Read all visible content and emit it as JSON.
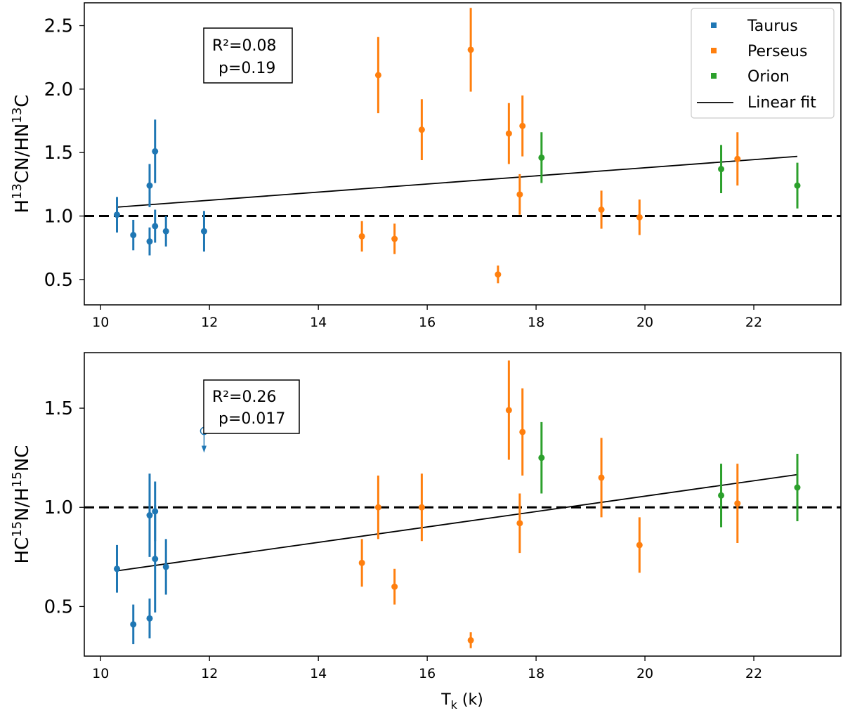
{
  "colors": {
    "Taurus": "#1f77b4",
    "Perseus": "#ff7f0e",
    "Orion": "#2ca02c",
    "fit": "#000000"
  },
  "legend": {
    "entries": [
      {
        "label": "Taurus",
        "type": "marker",
        "series": "Taurus"
      },
      {
        "label": "Perseus",
        "type": "marker",
        "series": "Perseus"
      },
      {
        "label": "Orion",
        "type": "marker",
        "series": "Orion"
      },
      {
        "label": "Linear fit",
        "type": "line",
        "series": "fit"
      }
    ]
  },
  "chart_data": [
    {
      "type": "scatter",
      "panel": "top",
      "ylabel": {
        "base1": "H",
        "sup1": "13",
        "base2": "CN/HN",
        "sup2": "13",
        "base3": "C"
      },
      "xlim": [
        9.7,
        23.6
      ],
      "ylim": [
        0.3,
        2.68
      ],
      "xticks": [
        10,
        12,
        14,
        16,
        18,
        20,
        22
      ],
      "yticks": [
        0.5,
        1.0,
        1.5,
        2.0,
        2.5
      ],
      "ytick_labels": [
        "0.5",
        "1.0",
        "1.5",
        "2.0",
        "2.5"
      ],
      "reference_line": 1.0,
      "fit": {
        "x": [
          10.3,
          22.8
        ],
        "y": [
          1.07,
          1.47
        ]
      },
      "stats": {
        "r2": "R²=0.08",
        "p": "p=0.19"
      },
      "series": [
        {
          "name": "Taurus",
          "points": [
            {
              "x": 10.3,
              "y": 1.01,
              "err": 0.14
            },
            {
              "x": 10.6,
              "y": 0.85,
              "err": 0.12
            },
            {
              "x": 10.9,
              "y": 1.24,
              "err": 0.17
            },
            {
              "x": 10.9,
              "y": 0.8,
              "err": 0.11
            },
            {
              "x": 11.0,
              "y": 1.51,
              "err": 0.25
            },
            {
              "x": 11.0,
              "y": 0.92,
              "err": 0.13
            },
            {
              "x": 11.2,
              "y": 0.88,
              "err": 0.12
            },
            {
              "x": 11.9,
              "y": 0.88,
              "err": 0.16
            }
          ]
        },
        {
          "name": "Perseus",
          "points": [
            {
              "x": 14.8,
              "y": 0.84,
              "err": 0.12
            },
            {
              "x": 15.1,
              "y": 2.11,
              "err": 0.3
            },
            {
              "x": 15.4,
              "y": 0.82,
              "err": 0.12
            },
            {
              "x": 15.9,
              "y": 1.68,
              "err": 0.24
            },
            {
              "x": 16.8,
              "y": 2.31,
              "err": 0.33
            },
            {
              "x": 17.3,
              "y": 0.54,
              "err": 0.07
            },
            {
              "x": 17.5,
              "y": 1.65,
              "err": 0.24
            },
            {
              "x": 17.7,
              "y": 1.17,
              "err": 0.16
            },
            {
              "x": 17.75,
              "y": 1.71,
              "err": 0.24
            },
            {
              "x": 19.2,
              "y": 1.05,
              "err": 0.15
            },
            {
              "x": 19.9,
              "y": 0.99,
              "err": 0.14
            },
            {
              "x": 21.7,
              "y": 1.45,
              "err": 0.21
            }
          ]
        },
        {
          "name": "Orion",
          "points": [
            {
              "x": 18.1,
              "y": 1.46,
              "err": 0.2
            },
            {
              "x": 21.4,
              "y": 1.37,
              "err": 0.19
            },
            {
              "x": 22.8,
              "y": 1.24,
              "err": 0.18
            }
          ]
        }
      ]
    },
    {
      "type": "scatter",
      "panel": "bottom",
      "ylabel": {
        "base1": "HC",
        "sup1": "15",
        "base2": "N/H",
        "sup2": "15",
        "base3": "NC"
      },
      "xlabel": {
        "base": "T",
        "sub": "k",
        "rest": " (k)"
      },
      "xlim": [
        9.7,
        23.6
      ],
      "ylim": [
        0.25,
        1.78
      ],
      "xticks": [
        10,
        12,
        14,
        16,
        18,
        20,
        22
      ],
      "yticks": [
        0.5,
        1.0,
        1.5
      ],
      "ytick_labels": [
        "0.5",
        "1.0",
        "1.5"
      ],
      "reference_line": 1.0,
      "fit": {
        "x": [
          10.3,
          22.8
        ],
        "y": [
          0.68,
          1.165
        ]
      },
      "stats": {
        "r2": "R²=0.26",
        "p": "p=0.017"
      },
      "upper_limits": [
        {
          "series": "Taurus",
          "x": 11.9,
          "y": 1.385
        }
      ],
      "series": [
        {
          "name": "Taurus",
          "points": [
            {
              "x": 10.3,
              "y": 0.69,
              "err": 0.12
            },
            {
              "x": 10.6,
              "y": 0.41,
              "err": 0.1
            },
            {
              "x": 10.9,
              "y": 0.44,
              "err": 0.1
            },
            {
              "x": 10.9,
              "y": 0.96,
              "err": 0.21
            },
            {
              "x": 11.0,
              "y": 0.98,
              "err": 0.15
            },
            {
              "x": 11.0,
              "y": 0.74,
              "err": 0.27
            },
            {
              "x": 11.2,
              "y": 0.7,
              "err": 0.14
            }
          ]
        },
        {
          "name": "Perseus",
          "points": [
            {
              "x": 14.8,
              "y": 0.72,
              "err": 0.12
            },
            {
              "x": 15.1,
              "y": 1.0,
              "err": 0.16
            },
            {
              "x": 15.4,
              "y": 0.6,
              "err": 0.09
            },
            {
              "x": 15.9,
              "y": 1.0,
              "err": 0.17
            },
            {
              "x": 16.8,
              "y": 0.33,
              "err": 0.04
            },
            {
              "x": 17.5,
              "y": 1.49,
              "err": 0.25
            },
            {
              "x": 17.7,
              "y": 0.92,
              "err": 0.15
            },
            {
              "x": 17.75,
              "y": 1.38,
              "err": 0.22
            },
            {
              "x": 19.2,
              "y": 1.15,
              "err": 0.2
            },
            {
              "x": 19.9,
              "y": 0.81,
              "err": 0.14
            },
            {
              "x": 21.7,
              "y": 1.02,
              "err": 0.2
            }
          ]
        },
        {
          "name": "Orion",
          "points": [
            {
              "x": 18.1,
              "y": 1.25,
              "err": 0.18
            },
            {
              "x": 21.4,
              "y": 1.06,
              "err": 0.16
            },
            {
              "x": 22.8,
              "y": 1.1,
              "err": 0.17
            }
          ]
        }
      ]
    }
  ]
}
